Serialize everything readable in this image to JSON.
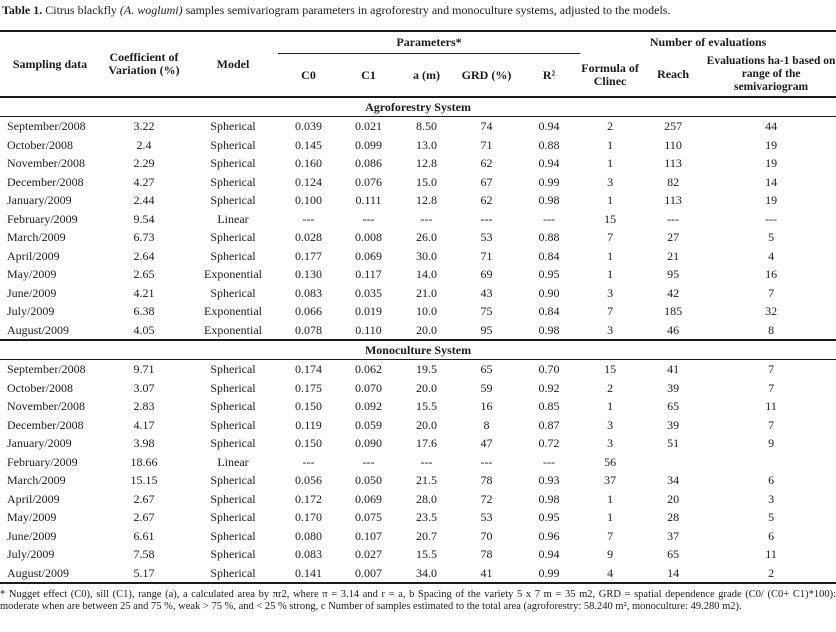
{
  "caption": {
    "label": "Table 1.",
    "before_italic": " Citrus blackfly ",
    "italic": "(A. woglumi)",
    "after_italic": " samples semivariogram parameters in agroforestry and monoculture systems, adjusted to the models."
  },
  "headers": {
    "sampling": "Sampling data",
    "cv": "Coefficient of Variation (%)",
    "model": "Model",
    "parameters_group": "Parameters*",
    "evaluations_group": "Number of evaluations",
    "c0": "C0",
    "c1": "C1",
    "a_m": "a (m)",
    "grd": "GRD (%)",
    "r2": "R²",
    "formula": "Formula of Clinec",
    "reach": "Reach",
    "evaluations_ha": "Evaluations ha-1 based on range of the semivariogram"
  },
  "sections": [
    {
      "name": "Agroforestry System",
      "rows": [
        [
          "September/2008",
          "3.22",
          "Spherical",
          "0.039",
          "0.021",
          "8.50",
          "74",
          "0.94",
          "2",
          "257",
          "44"
        ],
        [
          "October/2008",
          "2.4",
          "Spherical",
          "0.145",
          "0.099",
          "13.0",
          "71",
          "0.88",
          "1",
          "110",
          "19"
        ],
        [
          "November/2008",
          "2.29",
          "Spherical",
          "0.160",
          "0.086",
          "12.8",
          "62",
          "0.94",
          "1",
          "113",
          "19"
        ],
        [
          "December/2008",
          "4.27",
          "Spherical",
          "0.124",
          "0.076",
          "15.0",
          "67",
          "0.99",
          "3",
          "82",
          "14"
        ],
        [
          "January/2009",
          "2.44",
          "Spherical",
          "0.100",
          "0.111",
          "12.8",
          "62",
          "0.98",
          "1",
          "113",
          "19"
        ],
        [
          "February/2009",
          "9.54",
          "Linear",
          "---",
          "---",
          "---",
          "---",
          "---",
          "15",
          "---",
          "---"
        ],
        [
          "March/2009",
          "6.73",
          "Spherical",
          "0.028",
          "0.008",
          "26.0",
          "53",
          "0.88",
          "7",
          "27",
          "5"
        ],
        [
          "April/2009",
          "2.64",
          "Spherical",
          "0.177",
          "0.069",
          "30.0",
          "71",
          "0.84",
          "1",
          "21",
          "4"
        ],
        [
          "May/2009",
          "2.65",
          "Exponential",
          "0.130",
          "0.117",
          "14.0",
          "69",
          "0.95",
          "1",
          "95",
          "16"
        ],
        [
          "June/2009",
          "4.21",
          "Spherical",
          "0.083",
          "0.035",
          "21.0",
          "43",
          "0.90",
          "3",
          "42",
          "7"
        ],
        [
          "July/2009",
          "6.38",
          "Exponential",
          "0.066",
          "0.019",
          "10.0",
          "75",
          "0.84",
          "7",
          "185",
          "32"
        ],
        [
          "August/2009",
          "4.05",
          "Exponential",
          "0.078",
          "0.110",
          "20.0",
          "95",
          "0.98",
          "3",
          "46",
          "8"
        ]
      ]
    },
    {
      "name": "Monoculture System",
      "rows": [
        [
          "September/2008",
          "9.71",
          "Spherical",
          "0.174",
          "0.062",
          "19.5",
          "65",
          "0.70",
          "15",
          "41",
          "7"
        ],
        [
          "October/2008",
          "3.07",
          "Spherical",
          "0.175",
          "0.070",
          "20.0",
          "59",
          "0.92",
          "2",
          "39",
          "7"
        ],
        [
          "November/2008",
          "2.83",
          "Spherical",
          "0.150",
          "0.092",
          "15.5",
          "16",
          "0.85",
          "1",
          "65",
          "11"
        ],
        [
          "December/2008",
          "4.17",
          "Spherical",
          "0.119",
          "0.059",
          "20.0",
          "8",
          "0.87",
          "3",
          "39",
          "7"
        ],
        [
          "January/2009",
          "3.98",
          "Spherical",
          "0.150",
          "0.090",
          "17.6",
          "47",
          "0.72",
          "3",
          "51",
          "9"
        ],
        [
          "February/2009",
          "18.66",
          "Linear",
          "---",
          "---",
          "---",
          "---",
          "---",
          "56",
          "",
          ""
        ],
        [
          "March/2009",
          "15.15",
          "Spherical",
          "0.056",
          "0.050",
          "21.5",
          "78",
          "0.93",
          "37",
          "34",
          "6"
        ],
        [
          "April/2009",
          "2.67",
          "Spherical",
          "0.172",
          "0.069",
          "28.0",
          "72",
          "0.98",
          "1",
          "20",
          "3"
        ],
        [
          "May/2009",
          "2.67",
          "Spherical",
          "0.170",
          "0.075",
          "23.5",
          "53",
          "0.95",
          "1",
          "28",
          "5"
        ],
        [
          "June/2009",
          "6.61",
          "Spherical",
          "0.080",
          "0.107",
          "20.7",
          "70",
          "0.96",
          "7",
          "37",
          "6"
        ],
        [
          "July/2009",
          "7.58",
          "Spherical",
          "0.083",
          "0.027",
          "15.5",
          "78",
          "0.94",
          "9",
          "65",
          "11"
        ],
        [
          "August/2009",
          "5.17",
          "Spherical",
          "0.141",
          "0.007",
          "34.0",
          "41",
          "0.99",
          "4",
          "14",
          "2"
        ]
      ]
    }
  ],
  "footnote": "* Nugget effect (C0), sill (C1), range (a), a calculated area by πr2, where π = 3.14 and r = a, b Spacing of the variety 5 x 7 m = 35 m2, GRD = spatial dependence grade (C0/ (C0+ C1)*100): moderate when are between 25 and 75 %, weak > 75 %, and < 25 % strong, c Number of samples estimated to the total area (agroforestry: 58.240 m², monoculture: 49.280 m2)."
}
